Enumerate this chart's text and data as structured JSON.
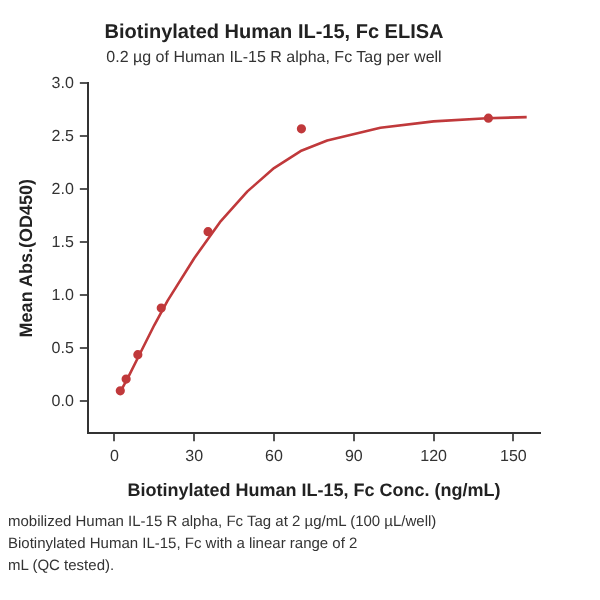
{
  "chart_data": {
    "type": "scatter",
    "title": "Biotinylated Human IL-15, Fc ELISA",
    "subtitle": "0.2 µg of Human IL-15 R alpha, Fc Tag per well",
    "xlabel": "Biotinylated Human IL-15, Fc Conc. (ng/mL)",
    "ylabel": "Mean Abs.(OD450)",
    "series": [
      {
        "color": "#c0393b",
        "marker": "circle",
        "x": [
          2.2,
          4.4,
          8.8,
          17.6,
          35.2,
          70.3,
          140.6
        ],
        "values": [
          0.1,
          0.21,
          0.44,
          0.88,
          1.6,
          2.57,
          2.67
        ]
      },
      {
        "type": "line",
        "marker": "none",
        "color": "#c0393b",
        "x": [
          2,
          5,
          10,
          15,
          20,
          30,
          40,
          50,
          60,
          70,
          80,
          100,
          120,
          140,
          155
        ],
        "values": [
          0.08,
          0.22,
          0.47,
          0.72,
          0.95,
          1.35,
          1.7,
          1.98,
          2.2,
          2.36,
          2.46,
          2.58,
          2.64,
          2.67,
          2.68
        ]
      }
    ],
    "xlim": [
      -10,
      160
    ],
    "xticks": [
      0,
      30,
      60,
      90,
      120,
      150
    ],
    "ylim": [
      -0.3,
      3.0
    ],
    "yticks": [
      {
        "value": 0,
        "label": "0.0"
      },
      0.5,
      {
        "value": 1,
        "label": "1.0"
      },
      1.5,
      {
        "value": 2,
        "label": "2.0"
      },
      2.5,
      {
        "value": 3,
        "label": "3.0"
      }
    ],
    "grid": false,
    "legend": false,
    "annotations": [
      "mobilized Human IL-15 R alpha, Fc Tag at 2 µg/mL (100 µL/well)",
      "Biotinylated Human IL-15, Fc with a linear range of 2",
      "mL (QC tested)."
    ]
  }
}
